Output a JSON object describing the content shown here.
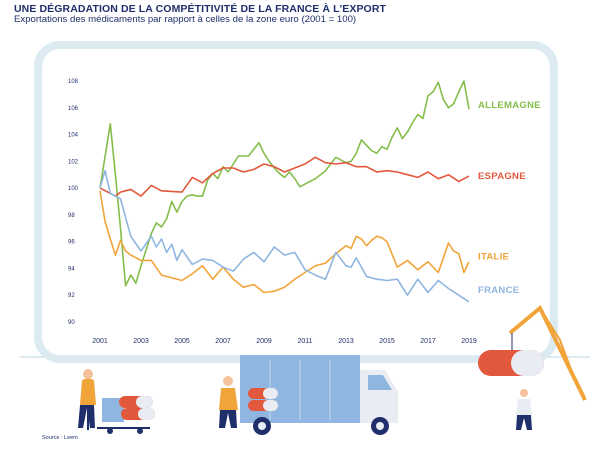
{
  "title": "UNE DÉGRADATION DE LA COMPÉTITIVITÉ DE LA FRANCE À L'EXPORT",
  "subtitle": "Exportations des médicaments par rapport à celles de la zone euro  (2001 = 100)",
  "source": "Source : Leem",
  "colors": {
    "allemagne": "#84bd4a",
    "espagne": "#e2583c",
    "italie": "#f0a43a",
    "france": "#8fb6e0",
    "text": "#1f2f6b",
    "frame": "#dcebf1"
  },
  "chart_data": {
    "type": "line",
    "title": "UNE DÉGRADATION DE LA COMPÉTITIVITÉ DE LA FRANCE À L'EXPORT",
    "subtitle": "Exportations des médicaments par rapport à celles de la zone euro  (2001 = 100)",
    "xlabel": "",
    "ylabel": "",
    "xlim": [
      2001,
      2019
    ],
    "ylim": [
      90,
      108
    ],
    "x_ticks": [
      "2001",
      "2003",
      "2005",
      "2007",
      "2009",
      "2011",
      "2013",
      "2015",
      "2017",
      "2019"
    ],
    "y_ticks": [
      "90",
      "92",
      "94",
      "96",
      "98",
      "100",
      "102",
      "104",
      "106",
      "108"
    ],
    "grid": false,
    "legend": "labels at right end of lines",
    "series": [
      {
        "name": "ALLEMAGNE",
        "color": "#84bd4a",
        "x": [
          2001,
          2001.5,
          2001.75,
          2002,
          2002.25,
          2002.5,
          2002.75,
          2003,
          2003.5,
          2003.75,
          2004,
          2004.25,
          2004.5,
          2004.75,
          2005,
          2005.25,
          2005.5,
          2005.75,
          2006,
          2006.25,
          2006.5,
          2006.75,
          2007,
          2007.25,
          2007.5,
          2007.75,
          2008,
          2008.25,
          2008.5,
          2008.75,
          2009,
          2009.25,
          2009.5,
          2009.75,
          2010,
          2010.25,
          2010.5,
          2010.75,
          2011,
          2011.5,
          2012,
          2012.5,
          2013,
          2013.25,
          2013.5,
          2013.75,
          2014,
          2014.25,
          2014.5,
          2014.75,
          2015,
          2015.25,
          2015.5,
          2015.75,
          2016,
          2016.25,
          2016.5,
          2016.75,
          2017,
          2017.25,
          2017.5,
          2017.75,
          2018,
          2018.25,
          2018.5,
          2018.75,
          2019
        ],
        "values": [
          100,
          104.8,
          101,
          97,
          92.7,
          93.5,
          92.9,
          94.2,
          96.6,
          97.4,
          97.1,
          97.7,
          99,
          98.2,
          99,
          99.4,
          99.5,
          99.4,
          99.4,
          100.6,
          101.1,
          100.7,
          101.6,
          101.2,
          101.8,
          102.4,
          102.4,
          102.4,
          102.9,
          103.4,
          102.6,
          102,
          101.5,
          101.1,
          100.8,
          101.2,
          100.7,
          100.1,
          100.3,
          100.7,
          101.3,
          102.3,
          101.9,
          102,
          102.6,
          103.6,
          103.2,
          102.8,
          102.6,
          103.1,
          102.9,
          103.8,
          104.5,
          103.7,
          104.2,
          104.9,
          105.5,
          105.2,
          106.9,
          107.2,
          107.9,
          106.6,
          106,
          106.3,
          107.2,
          108,
          105.9
        ],
        "label_text": "ALLEMAGNE"
      },
      {
        "name": "ESPAGNE",
        "color": "#e2583c",
        "x": [
          2001,
          2001.75,
          2002,
          2002.5,
          2003,
          2003.5,
          2004,
          2005,
          2005.5,
          2006,
          2006.5,
          2007,
          2007.5,
          2008,
          2008.5,
          2009,
          2009.5,
          2010,
          2010.5,
          2011,
          2011.5,
          2012,
          2012.5,
          2013,
          2013.5,
          2014,
          2014.5,
          2015,
          2015.5,
          2016,
          2016.5,
          2017,
          2017.5,
          2018,
          2018.5,
          2019
        ],
        "values": [
          100,
          99.4,
          99.7,
          99.9,
          99.4,
          100.2,
          99.8,
          99.7,
          100.8,
          100.4,
          101.1,
          101.5,
          101.5,
          101.2,
          101.4,
          101.8,
          101.6,
          101.2,
          101.5,
          101.8,
          102.3,
          101.9,
          101.8,
          101.9,
          101.6,
          101.6,
          101.2,
          101.3,
          101.2,
          101,
          100.8,
          101.2,
          100.7,
          101,
          100.5,
          100.9
        ],
        "label_text": "ESPAGNE"
      },
      {
        "name": "ITALIE",
        "color": "#f0a43a",
        "x": [
          2001,
          2001.25,
          2001.5,
          2001.75,
          2002,
          2002.25,
          2002.5,
          2003,
          2003.5,
          2004,
          2005,
          2005.5,
          2006,
          2006.5,
          2007,
          2007.5,
          2008,
          2008.5,
          2009,
          2009.5,
          2010,
          2010.5,
          2011,
          2011.5,
          2012,
          2012.5,
          2013,
          2013.25,
          2013.5,
          2013.75,
          2014,
          2014.25,
          2014.5,
          2014.75,
          2015,
          2015.5,
          2016,
          2016.5,
          2017,
          2017.5,
          2018,
          2018.25,
          2018.5,
          2018.75,
          2019
        ],
        "values": [
          99.8,
          97.5,
          96.2,
          95,
          96.1,
          95.3,
          95,
          94.6,
          94.6,
          93.5,
          93.1,
          93.6,
          94.2,
          93.2,
          94.1,
          93.2,
          92.6,
          92.8,
          92.2,
          92.3,
          92.6,
          93.2,
          93.7,
          94.2,
          94.4,
          95.1,
          95.7,
          95.5,
          96.4,
          96.2,
          95.7,
          96.1,
          96.4,
          96.3,
          96,
          94.1,
          94.6,
          93.9,
          94.5,
          93.7,
          95.9,
          95.3,
          95.1,
          93.7,
          94.5
        ],
        "label_text": "ITALIE"
      },
      {
        "name": "FRANCE",
        "color": "#8fb6e0",
        "x": [
          2001,
          2001.25,
          2001.5,
          2002,
          2002.5,
          2003,
          2003.5,
          2003.75,
          2004,
          2004.25,
          2004.5,
          2004.75,
          2005,
          2005.5,
          2006,
          2006.5,
          2007,
          2007.5,
          2008,
          2008.5,
          2009,
          2009.5,
          2010,
          2010.5,
          2011,
          2011.5,
          2012,
          2012.5,
          2013,
          2013.25,
          2013.5,
          2013.75,
          2014,
          2014.5,
          2015,
          2015.5,
          2016,
          2016.5,
          2017,
          2017.5,
          2018,
          2018.5,
          2019
        ],
        "values": [
          100,
          101.3,
          99.6,
          99.2,
          96.4,
          95.3,
          96.4,
          95.6,
          96.2,
          95.2,
          95.8,
          94.6,
          95.4,
          94.3,
          94.7,
          94.6,
          94.1,
          93.8,
          94.7,
          95.2,
          94.5,
          95.6,
          95,
          95.2,
          93.9,
          93.5,
          93.2,
          95.2,
          94.2,
          94.1,
          94.8,
          94.1,
          93.4,
          93.2,
          93.1,
          93.2,
          92,
          93.2,
          92.2,
          93.1,
          92.5,
          92,
          91.5
        ],
        "label_text": "FRANCE"
      }
    ]
  }
}
